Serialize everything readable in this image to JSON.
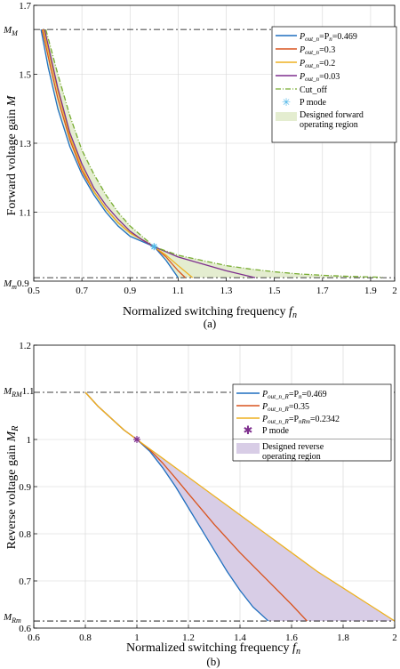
{
  "chart_data": [
    {
      "type": "line",
      "caption": "(a)",
      "xlabel": "Normalized switching frequency f_n",
      "ylabel": "Forward voltage gain M",
      "xlim": [
        0.5,
        2.0
      ],
      "ylim": [
        0.9,
        1.7
      ],
      "xticks": [
        "0.5",
        "0.7",
        "0.9",
        "1.1",
        "1.3",
        "1.5",
        "1.7",
        "1.9",
        "2"
      ],
      "yticks": [
        "1.7",
        "1.5",
        "1.3",
        "1.1"
      ],
      "grid": true,
      "legend_position": "top-right",
      "reference_lines": [
        {
          "label": "M_M",
          "value": 1.63
        },
        {
          "label": "M_m0.9",
          "value": 0.91
        }
      ],
      "marker": {
        "label": "P mode",
        "x": 1.0,
        "y": 1.0,
        "color": "#4db6e8"
      },
      "region_label": "Designed forward operating region",
      "region_color": "#e4edd0",
      "series": [
        {
          "name": "P_out_n=P_n=0.469",
          "color": "#1f6fbf",
          "x": [
            0.53,
            0.56,
            0.6,
            0.65,
            0.7,
            0.75,
            0.8,
            0.85,
            0.9,
            0.95,
            1.0,
            1.05,
            1.1
          ],
          "y": [
            1.63,
            1.52,
            1.4,
            1.29,
            1.21,
            1.15,
            1.1,
            1.06,
            1.03,
            1.015,
            1.0,
            0.96,
            0.91
          ]
        },
        {
          "name": "P_out_n=0.3",
          "color": "#d9541e",
          "x": [
            0.535,
            0.57,
            0.6,
            0.65,
            0.7,
            0.75,
            0.8,
            0.85,
            0.9,
            0.95,
            1.0,
            1.05,
            1.1,
            1.13
          ],
          "y": [
            1.63,
            1.52,
            1.43,
            1.31,
            1.22,
            1.16,
            1.11,
            1.07,
            1.04,
            1.02,
            1.0,
            0.97,
            0.93,
            0.91
          ]
        },
        {
          "name": "P_out_n=0.2",
          "color": "#edb120",
          "x": [
            0.54,
            0.57,
            0.6,
            0.65,
            0.7,
            0.75,
            0.8,
            0.85,
            0.9,
            0.95,
            1.0,
            1.05,
            1.1,
            1.16
          ],
          "y": [
            1.63,
            1.54,
            1.45,
            1.32,
            1.23,
            1.16,
            1.11,
            1.07,
            1.04,
            1.02,
            1.0,
            0.975,
            0.945,
            0.91
          ]
        },
        {
          "name": "P_out_n=0.03",
          "color": "#7e2f8e",
          "x": [
            0.545,
            0.6,
            0.65,
            0.7,
            0.75,
            0.8,
            0.85,
            0.9,
            0.95,
            1.0,
            1.05,
            1.1,
            1.2,
            1.3,
            1.42
          ],
          "y": [
            1.63,
            1.46,
            1.33,
            1.24,
            1.17,
            1.12,
            1.08,
            1.045,
            1.02,
            1.0,
            0.985,
            0.97,
            0.95,
            0.93,
            0.91
          ]
        },
        {
          "name": "Cut_off",
          "color": "#77ac30",
          "dash": "dashdot",
          "x": [
            0.55,
            0.6,
            0.65,
            0.7,
            0.75,
            0.8,
            0.85,
            0.9,
            0.95,
            1.0,
            1.1,
            1.2,
            1.3,
            1.4,
            1.5,
            1.6,
            1.7,
            1.8,
            1.9,
            1.95
          ],
          "y": [
            1.63,
            1.5,
            1.38,
            1.28,
            1.21,
            1.15,
            1.1,
            1.06,
            1.03,
            1.0,
            0.975,
            0.96,
            0.945,
            0.935,
            0.927,
            0.921,
            0.917,
            0.914,
            0.912,
            0.911
          ]
        }
      ]
    },
    {
      "type": "line",
      "caption": "(b)",
      "xlabel": "Normalized switching frequency f_n",
      "ylabel": "Reverse voltage gain M_R",
      "xlim": [
        0.6,
        2.0
      ],
      "ylim": [
        0.6,
        1.2
      ],
      "xticks": [
        "0.6",
        "0.8",
        "1",
        "1.2",
        "1.4",
        "1.6",
        "1.8",
        "2"
      ],
      "yticks": [
        "1.2",
        "1",
        "0.9",
        "0.8",
        "0.7",
        "0.6"
      ],
      "grid": true,
      "legend_position": "top-right",
      "reference_lines": [
        {
          "label": "M_RM1.1",
          "value": 1.1
        },
        {
          "label": "M_Rm",
          "value": 0.615
        }
      ],
      "marker": {
        "label": "P mode",
        "x": 1.0,
        "y": 1.0,
        "color": "#7e2f8e"
      },
      "region_label": "Designed reverse operating region",
      "region_color": "#d8cde6",
      "series": [
        {
          "name": "P_out_n_R=P_n=0.469",
          "color": "#1f6fbf",
          "x": [
            0.8,
            0.85,
            0.9,
            0.95,
            1.0,
            1.05,
            1.1,
            1.15,
            1.2,
            1.25,
            1.3,
            1.35,
            1.4,
            1.45,
            1.51
          ],
          "y": [
            1.1,
            1.07,
            1.045,
            1.02,
            1.0,
            0.975,
            0.94,
            0.9,
            0.855,
            0.81,
            0.765,
            0.72,
            0.68,
            0.645,
            0.615
          ]
        },
        {
          "name": "P_out_n_R=0.35",
          "color": "#d9541e",
          "x": [
            0.8,
            0.85,
            0.9,
            0.95,
            1.0,
            1.05,
            1.1,
            1.15,
            1.2,
            1.3,
            1.4,
            1.5,
            1.6,
            1.66
          ],
          "y": [
            1.1,
            1.07,
            1.045,
            1.02,
            1.0,
            0.978,
            0.95,
            0.918,
            0.885,
            0.82,
            0.76,
            0.705,
            0.65,
            0.615
          ]
        },
        {
          "name": "P_out_n_R=P_nRm=0.2342",
          "color": "#edb120",
          "x": [
            0.8,
            0.85,
            0.9,
            0.95,
            1.0,
            1.05,
            1.1,
            1.2,
            1.3,
            1.4,
            1.5,
            1.6,
            1.7,
            1.8,
            1.9,
            2.0
          ],
          "y": [
            1.1,
            1.07,
            1.045,
            1.02,
            1.0,
            0.98,
            0.96,
            0.92,
            0.88,
            0.84,
            0.8,
            0.76,
            0.72,
            0.685,
            0.65,
            0.615
          ]
        }
      ]
    }
  ],
  "legend_labels": {
    "a": [
      "=P",
      "=0.469",
      "=0.3",
      "=0.2",
      "=0.03",
      "Cut_off",
      "P mode",
      "Designed forward",
      "operating region"
    ],
    "b": [
      "=P",
      "=0.469",
      "=0.35",
      "=P",
      "=0.2342",
      "P mode",
      "Designed reverse",
      "operating region"
    ]
  }
}
